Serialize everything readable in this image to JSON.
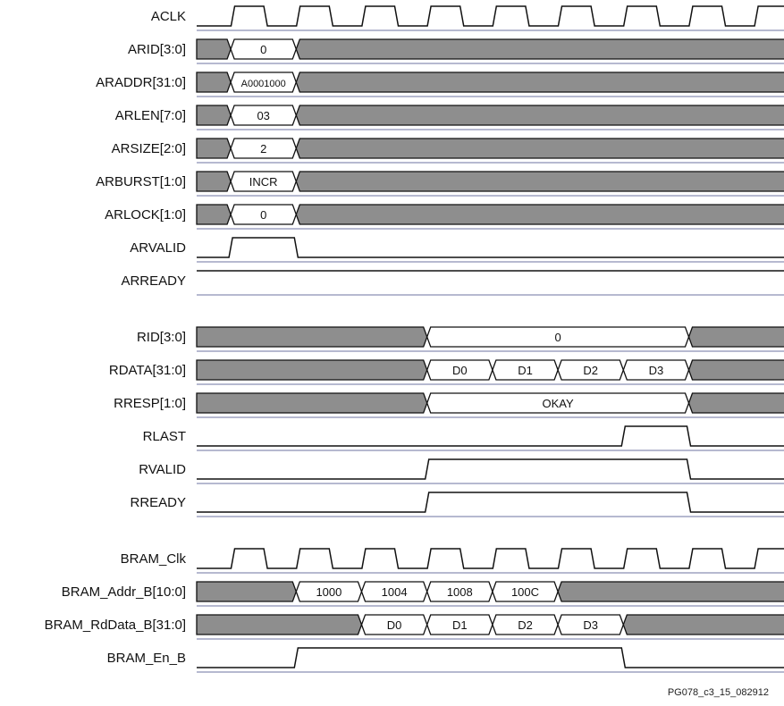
{
  "footer": "PG078_c3_15_082912",
  "colors": {
    "line": "#111111",
    "baseline": "#8a8fb3",
    "bus_fill_valid": "#ffffff",
    "bus_fill_invalid": "#8e8e8e"
  },
  "clock_edges_t": [
    1,
    2,
    3,
    4,
    5,
    6,
    7,
    8,
    9
  ],
  "signals": [
    {
      "id": "aclk",
      "name": "ACLK",
      "kind": "clock"
    },
    {
      "id": "arid",
      "name": "ARID[3:0]",
      "kind": "bus",
      "segments": [
        {
          "from": 0,
          "to": 0.5,
          "value": "",
          "valid": false
        },
        {
          "from": 0.5,
          "to": 1.5,
          "value": "0",
          "valid": true
        },
        {
          "from": 1.5,
          "to": 9.1,
          "value": "",
          "valid": false
        }
      ]
    },
    {
      "id": "araddr",
      "name": "ARADDR[31:0]",
      "kind": "bus",
      "segments": [
        {
          "from": 0,
          "to": 0.5,
          "value": "",
          "valid": false
        },
        {
          "from": 0.5,
          "to": 1.5,
          "value": "A0001000",
          "valid": true,
          "small": true
        },
        {
          "from": 1.5,
          "to": 9.1,
          "value": "",
          "valid": false
        }
      ]
    },
    {
      "id": "arlen",
      "name": "ARLEN[7:0]",
      "kind": "bus",
      "segments": [
        {
          "from": 0,
          "to": 0.5,
          "value": "",
          "valid": false
        },
        {
          "from": 0.5,
          "to": 1.5,
          "value": "03",
          "valid": true
        },
        {
          "from": 1.5,
          "to": 9.1,
          "value": "",
          "valid": false
        }
      ]
    },
    {
      "id": "arsize",
      "name": "ARSIZE[2:0]",
      "kind": "bus",
      "segments": [
        {
          "from": 0,
          "to": 0.5,
          "value": "",
          "valid": false
        },
        {
          "from": 0.5,
          "to": 1.5,
          "value": "2",
          "valid": true
        },
        {
          "from": 1.5,
          "to": 9.1,
          "value": "",
          "valid": false
        }
      ]
    },
    {
      "id": "arburst",
      "name": "ARBURST[1:0]",
      "kind": "bus",
      "segments": [
        {
          "from": 0,
          "to": 0.5,
          "value": "",
          "valid": false
        },
        {
          "from": 0.5,
          "to": 1.5,
          "value": "INCR",
          "valid": true
        },
        {
          "from": 1.5,
          "to": 9.1,
          "value": "",
          "valid": false
        }
      ]
    },
    {
      "id": "arlock",
      "name": "ARLOCK[1:0]",
      "kind": "bus",
      "segments": [
        {
          "from": 0,
          "to": 0.5,
          "value": "",
          "valid": false
        },
        {
          "from": 0.5,
          "to": 1.5,
          "value": "0",
          "valid": true
        },
        {
          "from": 1.5,
          "to": 9.1,
          "value": "",
          "valid": false
        }
      ]
    },
    {
      "id": "arvalid",
      "name": "ARVALID",
      "kind": "digital",
      "initial": 0,
      "transitions": [
        0.5,
        1.5
      ]
    },
    {
      "id": "arready",
      "name": "ARREADY",
      "kind": "digital",
      "initial": 1,
      "transitions": []
    },
    {
      "id": "rid",
      "name": "RID[3:0]",
      "kind": "bus",
      "gap_before": true,
      "segments": [
        {
          "from": 0,
          "to": 3.5,
          "value": "",
          "valid": false
        },
        {
          "from": 3.5,
          "to": 7.5,
          "value": "0",
          "valid": true
        },
        {
          "from": 7.5,
          "to": 9.1,
          "value": "",
          "valid": false
        }
      ]
    },
    {
      "id": "rdata",
      "name": "RDATA[31:0]",
      "kind": "bus",
      "segments": [
        {
          "from": 0,
          "to": 3.5,
          "value": "",
          "valid": false
        },
        {
          "from": 3.5,
          "to": 4.5,
          "value": "D0",
          "valid": true
        },
        {
          "from": 4.5,
          "to": 5.5,
          "value": "D1",
          "valid": true
        },
        {
          "from": 5.5,
          "to": 6.5,
          "value": "D2",
          "valid": true
        },
        {
          "from": 6.5,
          "to": 7.5,
          "value": "D3",
          "valid": true
        },
        {
          "from": 7.5,
          "to": 9.1,
          "value": "",
          "valid": false
        }
      ]
    },
    {
      "id": "rresp",
      "name": "RRESP[1:0]",
      "kind": "bus",
      "segments": [
        {
          "from": 0,
          "to": 3.5,
          "value": "",
          "valid": false
        },
        {
          "from": 3.5,
          "to": 7.5,
          "value": "OKAY",
          "valid": true
        },
        {
          "from": 7.5,
          "to": 9.1,
          "value": "",
          "valid": false
        }
      ]
    },
    {
      "id": "rlast",
      "name": "RLAST",
      "kind": "digital",
      "initial": 0,
      "transitions": [
        6.5,
        7.5
      ]
    },
    {
      "id": "rvalid",
      "name": "RVALID",
      "kind": "digital",
      "initial": 0,
      "transitions": [
        3.5,
        7.5
      ]
    },
    {
      "id": "rready",
      "name": "RREADY",
      "kind": "digital",
      "initial": 0,
      "transitions": [
        3.5,
        7.5
      ]
    },
    {
      "id": "bram-clk",
      "name": "BRAM_Clk",
      "kind": "clock",
      "gap_before": true
    },
    {
      "id": "bram-addr",
      "name": "BRAM_Addr_B[10:0]",
      "kind": "bus",
      "segments": [
        {
          "from": 0,
          "to": 1.5,
          "value": "",
          "valid": false
        },
        {
          "from": 1.5,
          "to": 2.5,
          "value": "1000",
          "valid": true
        },
        {
          "from": 2.5,
          "to": 3.5,
          "value": "1004",
          "valid": true
        },
        {
          "from": 3.5,
          "to": 4.5,
          "value": "1008",
          "valid": true
        },
        {
          "from": 4.5,
          "to": 5.5,
          "value": "100C",
          "valid": true
        },
        {
          "from": 5.5,
          "to": 9.1,
          "value": "",
          "valid": false
        }
      ]
    },
    {
      "id": "bram-rddata",
      "name": "BRAM_RdData_B[31:0]",
      "kind": "bus",
      "segments": [
        {
          "from": 0,
          "to": 2.5,
          "value": "",
          "valid": false
        },
        {
          "from": 2.5,
          "to": 3.5,
          "value": "D0",
          "valid": true
        },
        {
          "from": 3.5,
          "to": 4.5,
          "value": "D1",
          "valid": true
        },
        {
          "from": 4.5,
          "to": 5.5,
          "value": "D2",
          "valid": true
        },
        {
          "from": 5.5,
          "to": 6.5,
          "value": "D3",
          "valid": true
        },
        {
          "from": 6.5,
          "to": 9.1,
          "value": "",
          "valid": false
        }
      ]
    },
    {
      "id": "bram-en",
      "name": "BRAM_En_B",
      "kind": "digital",
      "initial": 0,
      "transitions": [
        1.5,
        6.5
      ]
    }
  ]
}
